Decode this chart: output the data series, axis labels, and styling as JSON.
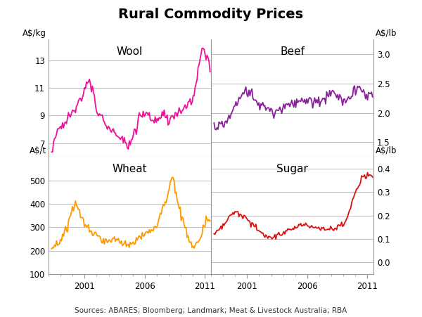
{
  "title": "Rural Commodity Prices",
  "title_fontsize": 14,
  "subplot_fontsize": 11,
  "tick_fontsize": 8.5,
  "source_fontsize": 7.5,
  "source_text": "Sources: ABARES; Bloomberg; Landmark; Meat & Livestock Australia; RBA",
  "wool_label": "Wool",
  "beef_label": "Beef",
  "wheat_label": "Wheat",
  "sugar_label": "Sugar",
  "wool_ylabel": "A$/kg",
  "beef_ylabel": "A$/lb",
  "wheat_ylabel": "A$/t",
  "sugar_ylabel": "A$/lb",
  "wool_color": "#EE1199",
  "beef_color": "#882299",
  "wheat_color": "#FF9900",
  "sugar_color": "#DD1111",
  "wool_ylim": [
    6.0,
    14.5
  ],
  "wool_yticks": [
    7,
    9,
    11,
    13
  ],
  "beef_ylim": [
    1.25,
    3.25
  ],
  "beef_yticks": [
    1.5,
    2.0,
    2.5,
    3.0
  ],
  "wheat_ylim": [
    100,
    600
  ],
  "wheat_yticks": [
    100,
    200,
    300,
    400,
    500
  ],
  "sugar_ylim": [
    -0.05,
    0.45
  ],
  "sugar_yticks": [
    0.0,
    0.1,
    0.2,
    0.3,
    0.4
  ],
  "xmin": 1998.25,
  "xmax": 2011.5,
  "xticks": [
    2001,
    2006,
    2011
  ],
  "background_color": "#ffffff",
  "grid_color": "#bbbbbb",
  "spine_color": "#999999",
  "line_width": 1.3
}
